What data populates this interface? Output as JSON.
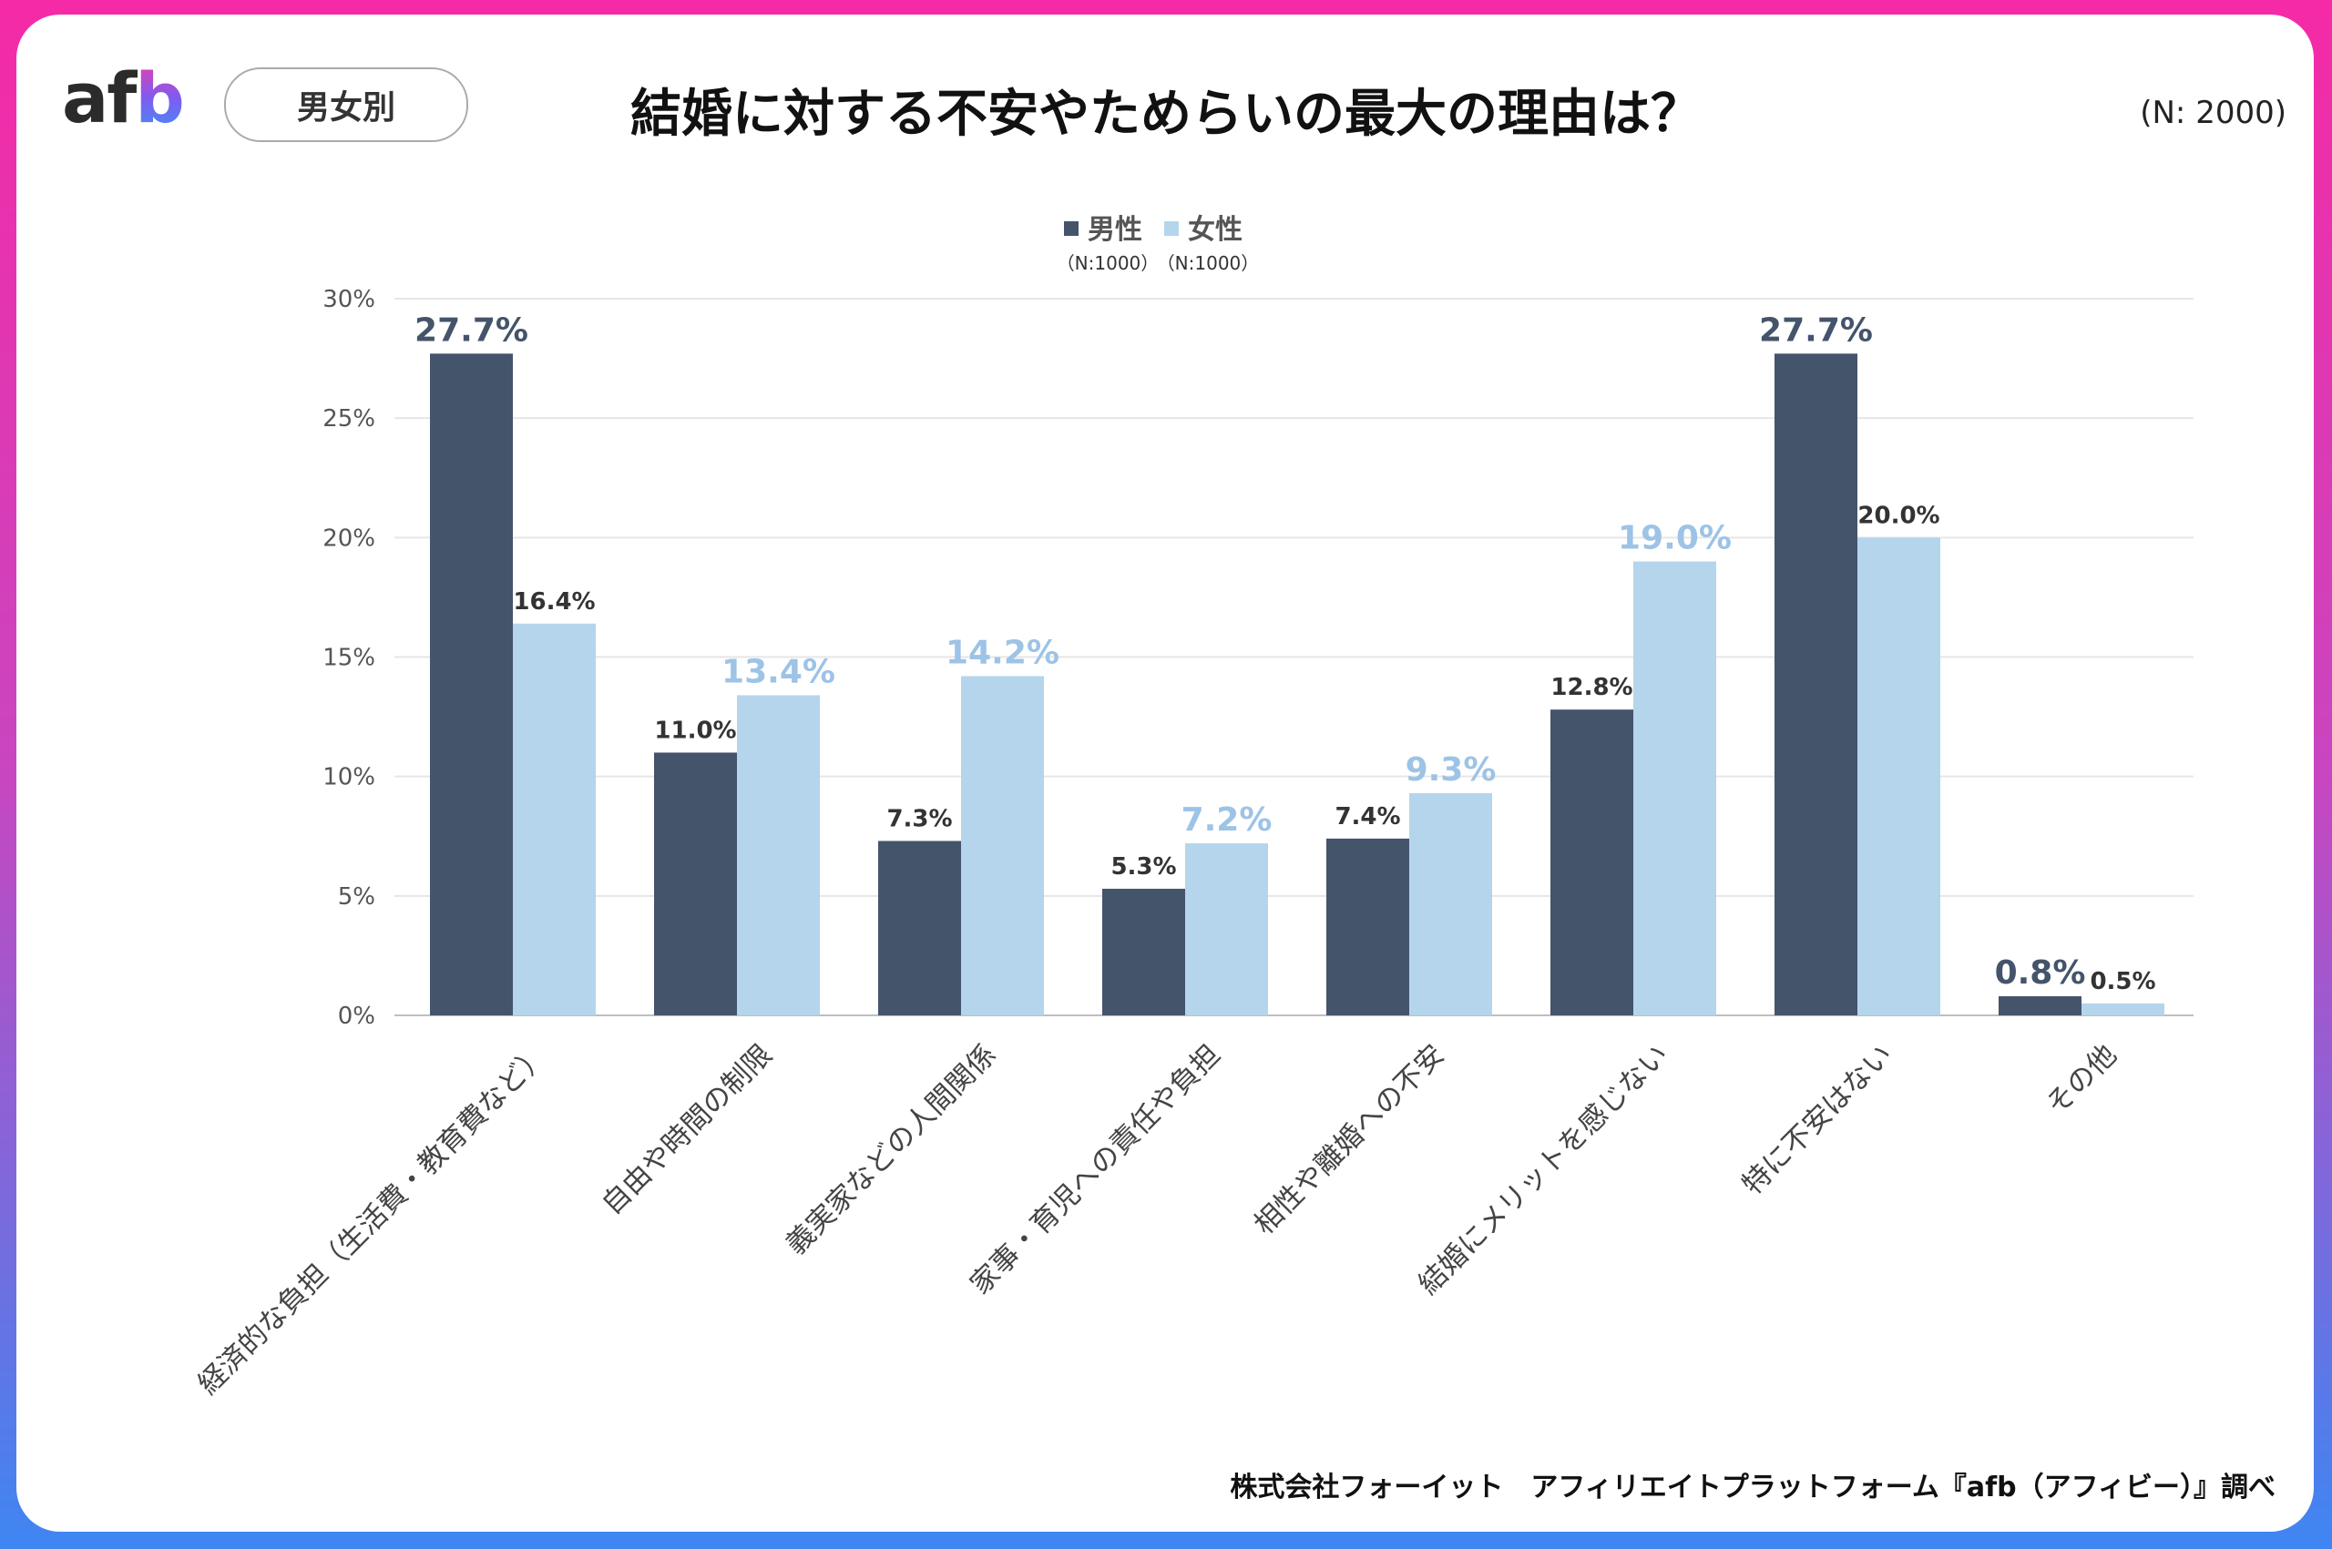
{
  "header": {
    "logo_text": "afb",
    "filter_label": "男女別",
    "title": "結婚に対する不安やためらいの最大の理由は？",
    "sample_size": "(N: 2000)"
  },
  "footer": {
    "source": "株式会社フォーイット　アフィリエイトプラットフォーム『afb（アフィビー）』調べ"
  },
  "colors": {
    "male": "#44546a",
    "female": "#b4d5ec",
    "highlight_female_label": "#9dc3e6",
    "frame_top": "#f52aa6",
    "frame_bottom": "#3e86f2"
  },
  "chart_data": {
    "type": "bar",
    "categories": [
      "経済的な負担（生活費・教育費など）",
      "自由や時間の制限",
      "義実家などの人間関係",
      "家事・育児への責任や負担",
      "相性や離婚への不安",
      "結婚にメリットを感じない",
      "特に不安はない",
      "その他"
    ],
    "series": [
      {
        "name": "男性",
        "note": "（N:1000）",
        "values": [
          27.7,
          11.0,
          7.3,
          5.3,
          7.4,
          12.8,
          27.7,
          0.8
        ],
        "labels": [
          "27.7%",
          "11.0%",
          "7.3%",
          "5.3%",
          "7.4%",
          "12.8%",
          "27.7%",
          "0.8%"
        ],
        "highlighted": [
          true,
          false,
          false,
          false,
          false,
          false,
          true,
          true
        ]
      },
      {
        "name": "女性",
        "note": "（N:1000）",
        "values": [
          16.4,
          13.4,
          14.2,
          7.2,
          9.3,
          19.0,
          20.0,
          0.5
        ],
        "labels": [
          "16.4%",
          "13.4%",
          "14.2%",
          "7.2%",
          "9.3%",
          "19.0%",
          "20.0%",
          "0.5%"
        ],
        "highlighted": [
          false,
          true,
          true,
          true,
          true,
          true,
          false,
          false
        ]
      }
    ],
    "ylim": [
      0,
      30
    ],
    "yticks": [
      "0%",
      "5%",
      "10%",
      "15%",
      "20%",
      "25%",
      "30%"
    ],
    "grid": true,
    "legend": "top-center"
  }
}
